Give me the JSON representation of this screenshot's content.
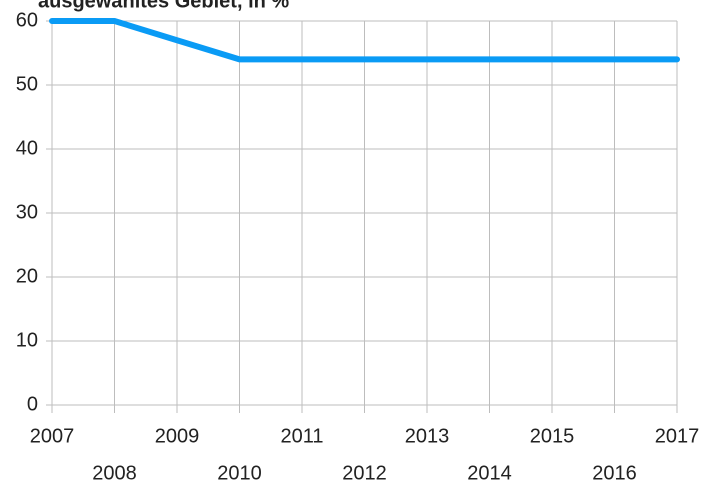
{
  "chart_data": {
    "type": "line",
    "title": "ausgewähltes Gebiet, in %",
    "categories": [
      "2007",
      "2008",
      "2009",
      "2010",
      "2011",
      "2012",
      "2013",
      "2014",
      "2015",
      "2016",
      "2017"
    ],
    "series": [
      {
        "name": null,
        "color": "#0a9bf5",
        "values": [
          60,
          60,
          57,
          54,
          54,
          54,
          54,
          54,
          54,
          54,
          54
        ]
      }
    ],
    "ylim": [
      0,
      60
    ],
    "yticks": [
      0,
      10,
      20,
      30,
      40,
      50,
      60
    ],
    "grid": true
  }
}
